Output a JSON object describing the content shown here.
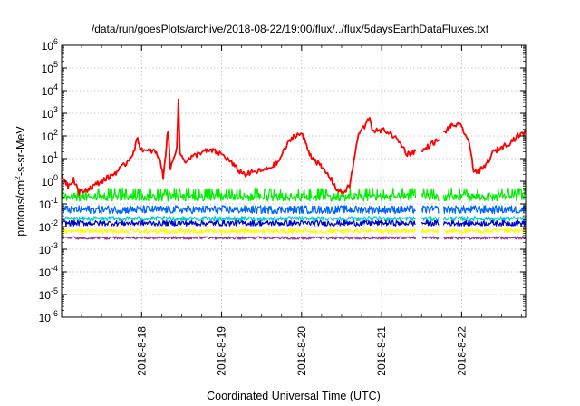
{
  "chart_data": {
    "type": "line",
    "title": "/data/run/goesPlots/archive/2018-08-22/19:00/flux/../flux/5daysEarthDataFluxes.txt",
    "xlabel": "Coordinated Universal Time (UTC)",
    "ylabel": {
      "pre": "protons/cm",
      "sup": "2",
      "post": "-s-sr-MeV"
    },
    "yscale": "log",
    "ylim_exp": [
      -6,
      6
    ],
    "ytick_base": "10",
    "ytick_exponents": [
      "6",
      "5",
      "4",
      "3",
      "2",
      "1",
      "0",
      "-1",
      "-2",
      "-3",
      "-4",
      "-5",
      "-6"
    ],
    "xlim_days": [
      0,
      5.8
    ],
    "xtick_positions_days": [
      1,
      2,
      3,
      4,
      5
    ],
    "xtick_labels": [
      "2018-8-18",
      "2018-8-19",
      "2018-8-20",
      "2018-8-21",
      "2018-8-22"
    ],
    "grid": true,
    "data_gaps_days": [
      [
        4.43,
        4.5
      ],
      [
        4.72,
        4.77
      ]
    ],
    "series": [
      {
        "color": "#ff0000",
        "noise_decades": 0.12,
        "points": [
          [
            0.0,
            0.3
          ],
          [
            0.08,
            -0.2
          ],
          [
            0.15,
            0.1
          ],
          [
            0.22,
            -0.5
          ],
          [
            0.3,
            -0.4
          ],
          [
            0.38,
            -0.25
          ],
          [
            0.45,
            -0.1
          ],
          [
            0.52,
            0.05
          ],
          [
            0.6,
            0.2
          ],
          [
            0.68,
            0.4
          ],
          [
            0.75,
            0.6
          ],
          [
            0.82,
            0.85
          ],
          [
            0.9,
            1.3
          ],
          [
            0.95,
            1.9
          ],
          [
            0.98,
            1.5
          ],
          [
            1.05,
            1.3
          ],
          [
            1.15,
            1.35
          ],
          [
            1.22,
            1.05
          ],
          [
            1.27,
            0.2
          ],
          [
            1.3,
            1.2
          ],
          [
            1.33,
            2.3
          ],
          [
            1.36,
            0.5
          ],
          [
            1.4,
            1.1
          ],
          [
            1.44,
            1.5
          ],
          [
            1.46,
            3.5
          ],
          [
            1.48,
            1.2
          ],
          [
            1.55,
            0.9
          ],
          [
            1.65,
            1.1
          ],
          [
            1.75,
            1.3
          ],
          [
            1.88,
            1.35
          ],
          [
            2.0,
            1.2
          ],
          [
            2.1,
            0.9
          ],
          [
            2.2,
            0.5
          ],
          [
            2.3,
            0.3
          ],
          [
            2.4,
            0.4
          ],
          [
            2.55,
            0.5
          ],
          [
            2.7,
            0.8
          ],
          [
            2.8,
            1.5
          ],
          [
            2.9,
            2.0
          ],
          [
            3.0,
            2.1
          ],
          [
            3.05,
            1.7
          ],
          [
            3.1,
            1.2
          ],
          [
            3.18,
            0.9
          ],
          [
            3.25,
            0.6
          ],
          [
            3.35,
            0.2
          ],
          [
            3.45,
            -0.4
          ],
          [
            3.52,
            -0.5
          ],
          [
            3.6,
            -0.2
          ],
          [
            3.65,
            0.8
          ],
          [
            3.7,
            1.9
          ],
          [
            3.75,
            2.3
          ],
          [
            3.8,
            2.45
          ],
          [
            3.85,
            2.9
          ],
          [
            3.88,
            2.3
          ],
          [
            3.95,
            2.2
          ],
          [
            4.05,
            2.25
          ],
          [
            4.15,
            2.0
          ],
          [
            4.25,
            1.6
          ],
          [
            4.32,
            1.2
          ],
          [
            4.4,
            1.3
          ],
          [
            4.43,
            1.35
          ],
          [
            4.5,
            1.3
          ],
          [
            4.6,
            1.6
          ],
          [
            4.72,
            1.85
          ],
          [
            4.77,
            2.1
          ],
          [
            4.85,
            2.4
          ],
          [
            4.93,
            2.5
          ],
          [
            5.0,
            2.4
          ],
          [
            5.07,
            1.9
          ],
          [
            5.12,
            1.2
          ],
          [
            5.15,
            0.5
          ],
          [
            5.2,
            0.4
          ],
          [
            5.28,
            0.6
          ],
          [
            5.4,
            1.3
          ],
          [
            5.5,
            1.5
          ],
          [
            5.6,
            1.7
          ],
          [
            5.7,
            2.0
          ],
          [
            5.8,
            2.15
          ]
        ]
      },
      {
        "color": "#00ee00",
        "level": -0.7,
        "noise_decades": 0.18,
        "spikes_to": -0.35,
        "points": []
      },
      {
        "color": "#0066ff",
        "level": -1.25,
        "noise_decades": 0.18,
        "points": []
      },
      {
        "color": "#0000cc",
        "level": -1.85,
        "noise_decades": 0.12,
        "points": []
      },
      {
        "color": "#00cccc",
        "level": -1.65,
        "noise_decades": 0.1,
        "points": []
      },
      {
        "color": "#ffff00",
        "level": -2.2,
        "noise_decades": 0.1,
        "points": []
      },
      {
        "color": "#993399",
        "level": -2.5,
        "noise_decades": 0.06,
        "points": []
      }
    ]
  }
}
